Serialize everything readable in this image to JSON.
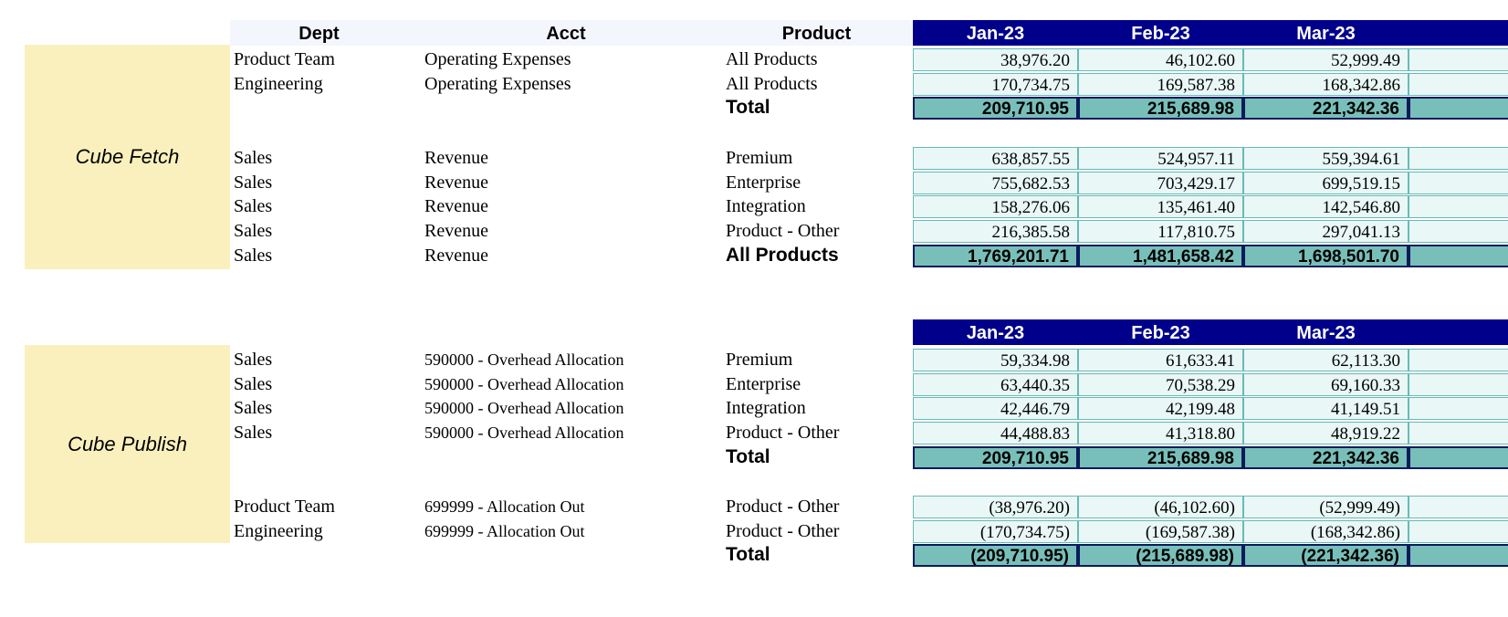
{
  "columns": {
    "dept": "Dept",
    "acct": "Acct",
    "product": "Product"
  },
  "months": [
    "Jan-23",
    "Feb-23",
    "Mar-23"
  ],
  "sections": [
    {
      "label": "Cube Fetch",
      "groups": [
        {
          "rows": [
            {
              "dept": "Product Team",
              "acct": "Operating Expenses",
              "product": "All Products",
              "values": [
                "38,976.20",
                "46,102.60",
                "52,999.49"
              ]
            },
            {
              "dept": "Engineering",
              "acct": "Operating Expenses",
              "product": "All Products",
              "values": [
                "170,734.75",
                "169,587.38",
                "168,342.86"
              ]
            }
          ],
          "total": {
            "dept": "",
            "acct": "",
            "label": "Total",
            "values": [
              "209,710.95",
              "215,689.98",
              "221,342.36"
            ]
          }
        },
        {
          "rows": [
            {
              "dept": "Sales",
              "acct": "Revenue",
              "product": "Premium",
              "values": [
                "638,857.55",
                "524,957.11",
                "559,394.61"
              ]
            },
            {
              "dept": "Sales",
              "acct": "Revenue",
              "product": "Enterprise",
              "values": [
                "755,682.53",
                "703,429.17",
                "699,519.15"
              ]
            },
            {
              "dept": "Sales",
              "acct": "Revenue",
              "product": "Integration",
              "values": [
                "158,276.06",
                "135,461.40",
                "142,546.80"
              ]
            },
            {
              "dept": "Sales",
              "acct": "Revenue",
              "product": "Product - Other",
              "values": [
                "216,385.58",
                "117,810.75",
                "297,041.13"
              ]
            }
          ],
          "total": {
            "dept": "Sales",
            "acct": "Revenue",
            "label": "All Products",
            "values": [
              "1,769,201.71",
              "1,481,658.42",
              "1,698,501.70"
            ]
          }
        }
      ]
    },
    {
      "label": "Cube Publish",
      "groups": [
        {
          "rows": [
            {
              "dept": "Sales",
              "acct": "590000 - Overhead Allocation",
              "product": "Premium",
              "values": [
                "59,334.98",
                "61,633.41",
                "62,113.30"
              ]
            },
            {
              "dept": "Sales",
              "acct": "590000 - Overhead Allocation",
              "product": "Enterprise",
              "values": [
                "63,440.35",
                "70,538.29",
                "69,160.33"
              ]
            },
            {
              "dept": "Sales",
              "acct": "590000 - Overhead Allocation",
              "product": "Integration",
              "values": [
                "42,446.79",
                "42,199.48",
                "41,149.51"
              ]
            },
            {
              "dept": "Sales",
              "acct": "590000 - Overhead Allocation",
              "product": "Product - Other",
              "values": [
                "44,488.83",
                "41,318.80",
                "48,919.22"
              ]
            }
          ],
          "total": {
            "dept": "",
            "acct": "",
            "label": "Total",
            "values": [
              "209,710.95",
              "215,689.98",
              "221,342.36"
            ]
          }
        },
        {
          "rows": [
            {
              "dept": "Product Team",
              "acct": "699999 - Allocation Out",
              "product": "Product - Other",
              "values": [
                "(38,976.20)",
                "(46,102.60)",
                "(52,999.49)"
              ]
            },
            {
              "dept": "Engineering",
              "acct": "699999 - Allocation Out",
              "product": "Product - Other",
              "values": [
                "(170,734.75)",
                "(169,587.38)",
                "(168,342.86)"
              ]
            }
          ],
          "total": {
            "dept": "",
            "acct": "",
            "label": "Total",
            "values": [
              "(209,710.95)",
              "(215,689.98)",
              "(221,342.36)"
            ]
          }
        }
      ]
    }
  ],
  "colors": {
    "header_navy": "#00008b",
    "cell_light": "#e9f7f6",
    "cell_border": "#67bab6",
    "total_fill": "#78bfba",
    "side_label": "#f9f0bd"
  }
}
